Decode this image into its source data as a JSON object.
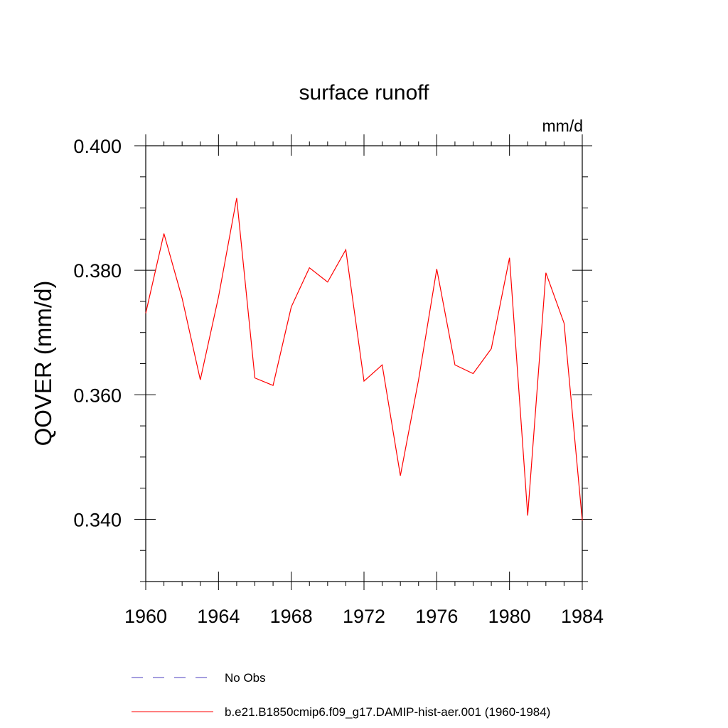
{
  "chart_data": {
    "type": "line",
    "title": "surface runoff",
    "units_label": "mm/d",
    "ylabel": "QOVER  (mm/d)",
    "xlabel": "",
    "xlim": [
      1960,
      1984
    ],
    "ylim": [
      0.33,
      0.4
    ],
    "x_ticks": [
      1960,
      1964,
      1968,
      1972,
      1976,
      1980,
      1984
    ],
    "y_ticks": [
      0.34,
      0.36,
      0.38,
      0.4
    ],
    "y_tick_labels": [
      "0.340",
      "0.360",
      "0.380",
      "0.400"
    ],
    "x_tick_labels": [
      "1960",
      "1964",
      "1968",
      "1972",
      "1976",
      "1980",
      "1984"
    ],
    "x": [
      1960,
      1961,
      1962,
      1963,
      1964,
      1965,
      1966,
      1967,
      1968,
      1969,
      1970,
      1971,
      1972,
      1973,
      1974,
      1975,
      1976,
      1977,
      1978,
      1979,
      1980,
      1981,
      1982,
      1983,
      1984
    ],
    "series": [
      {
        "name": "b.e21.B1850cmip6.f09_g17.DAMIP-hist-aer.001 (1960-1984)",
        "color": "#ff0000",
        "dash": "solid",
        "values": [
          0.3731,
          0.3859,
          0.3755,
          0.3624,
          0.3757,
          0.3916,
          0.3627,
          0.3615,
          0.3741,
          0.3804,
          0.3781,
          0.3833,
          0.3622,
          0.3648,
          0.347,
          0.3624,
          0.3802,
          0.3648,
          0.3634,
          0.3674,
          0.382,
          0.3406,
          0.3796,
          0.3715,
          0.3398
        ]
      }
    ],
    "legend": {
      "placement": "bottom",
      "entries": [
        {
          "label": "No Obs",
          "color": "#4b3cbf",
          "dash": "dashed"
        },
        {
          "label": "b.e21.B1850cmip6.f09_g17.DAMIP-hist-aer.001 (1960-1984)",
          "color": "#ff0000",
          "dash": "solid"
        }
      ]
    }
  }
}
